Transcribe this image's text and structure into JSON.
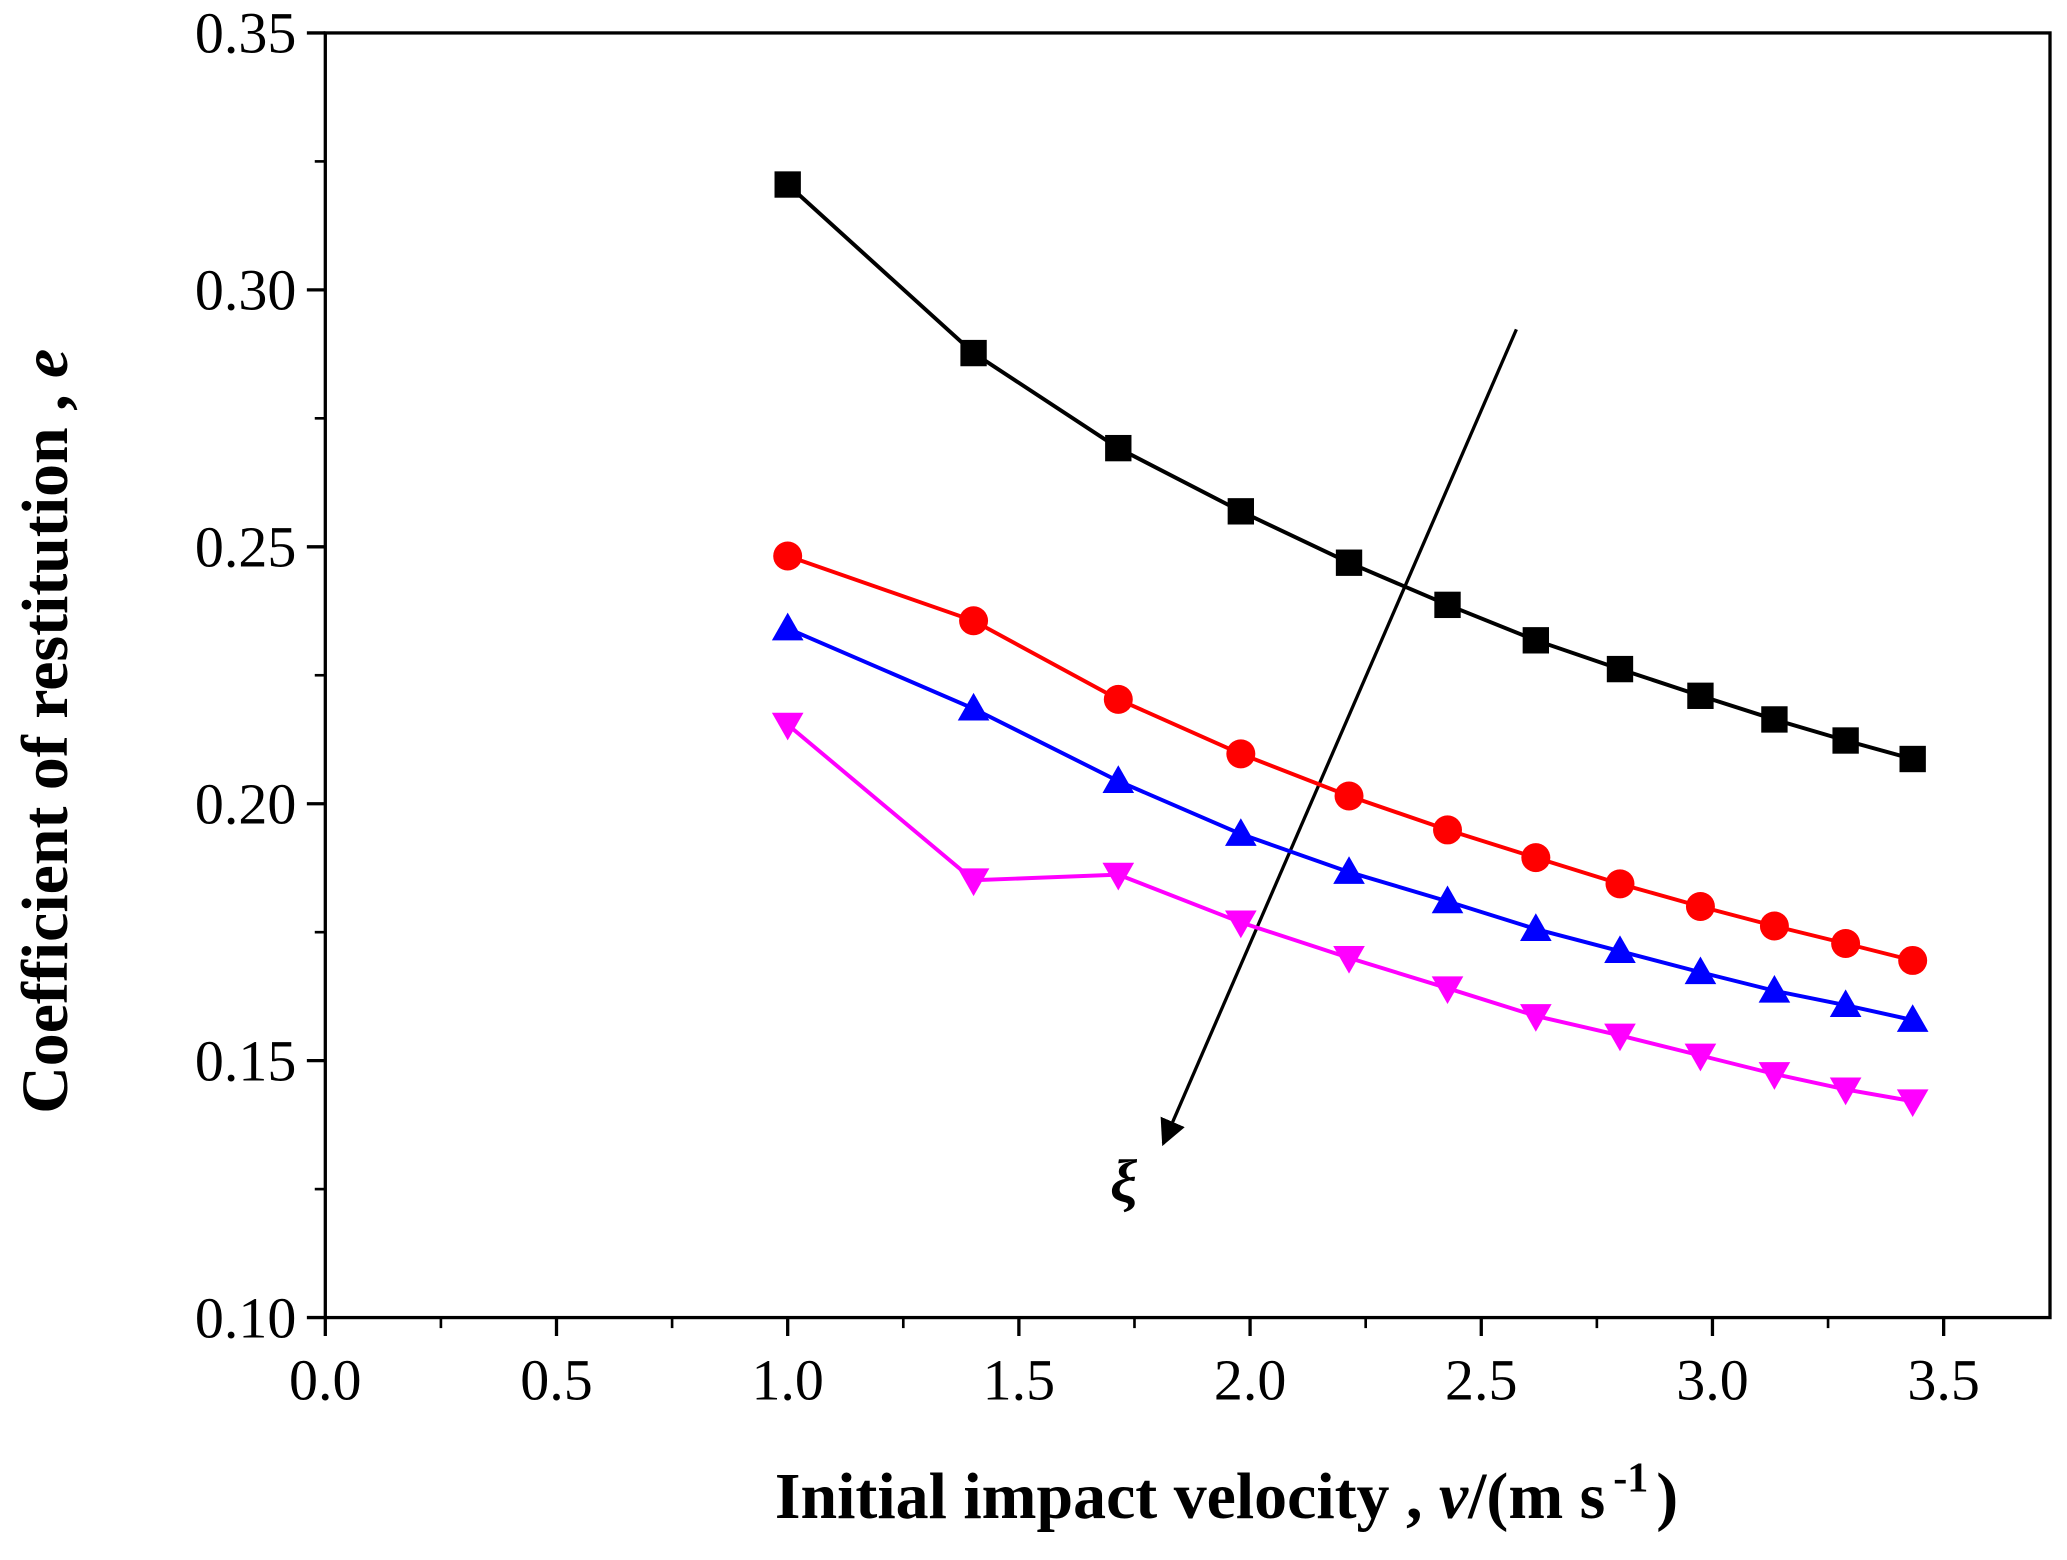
{
  "chart_data": {
    "type": "line",
    "xlabel": [
      "Initial impact velocity , ",
      "v",
      "/(m s",
      "-1",
      ")"
    ],
    "ylabel": [
      "Coefficient of restitution , ",
      "e"
    ],
    "annotation": "ξ",
    "x": [
      1.0,
      1.402,
      1.715,
      1.98,
      2.214,
      2.427,
      2.618,
      2.8,
      2.974,
      3.134,
      3.288,
      3.433
    ],
    "series": [
      {
        "color": "#000000",
        "marker": "square",
        "values": [
          0.3205,
          0.2877,
          0.2692,
          0.2569,
          0.2469,
          0.2387,
          0.2318,
          0.2262,
          0.221,
          0.2164,
          0.2123,
          0.2087
        ]
      },
      {
        "color": "#ff0000",
        "marker": "circle",
        "values": [
          0.2482,
          0.2356,
          0.2203,
          0.2097,
          0.2015,
          0.1949,
          0.1895,
          0.1844,
          0.18,
          0.1762,
          0.1728,
          0.1695
        ]
      },
      {
        "color": "#0000ff",
        "marker": "triangle-up",
        "values": [
          0.2341,
          0.2185,
          0.2044,
          0.1941,
          0.1867,
          0.181,
          0.1756,
          0.1713,
          0.1672,
          0.1636,
          0.1608,
          0.1579
        ]
      },
      {
        "color": "#ff00ff",
        "marker": "triangle-down",
        "values": [
          0.2154,
          0.1851,
          0.1862,
          0.1769,
          0.17,
          0.1641,
          0.1587,
          0.1549,
          0.151,
          0.1474,
          0.1444,
          0.1421
        ]
      }
    ],
    "xlim": [
      0,
      3.73
    ],
    "ylim": [
      0.1,
      0.35
    ],
    "xticks": [
      {
        "value": 0,
        "label": "0.0"
      },
      0.5,
      {
        "value": 1,
        "label": "1.0"
      },
      1.5,
      {
        "value": 2,
        "label": "2.0"
      },
      2.5,
      {
        "value": 3,
        "label": "3.0"
      },
      3.5
    ],
    "yticks": [
      {
        "value": 0.1,
        "label": "0.10"
      },
      0.15,
      {
        "value": 0.2,
        "label": "0.20"
      },
      0.25,
      {
        "value": 0.3,
        "label": "0.30"
      },
      0.35
    ],
    "grid": false
  }
}
